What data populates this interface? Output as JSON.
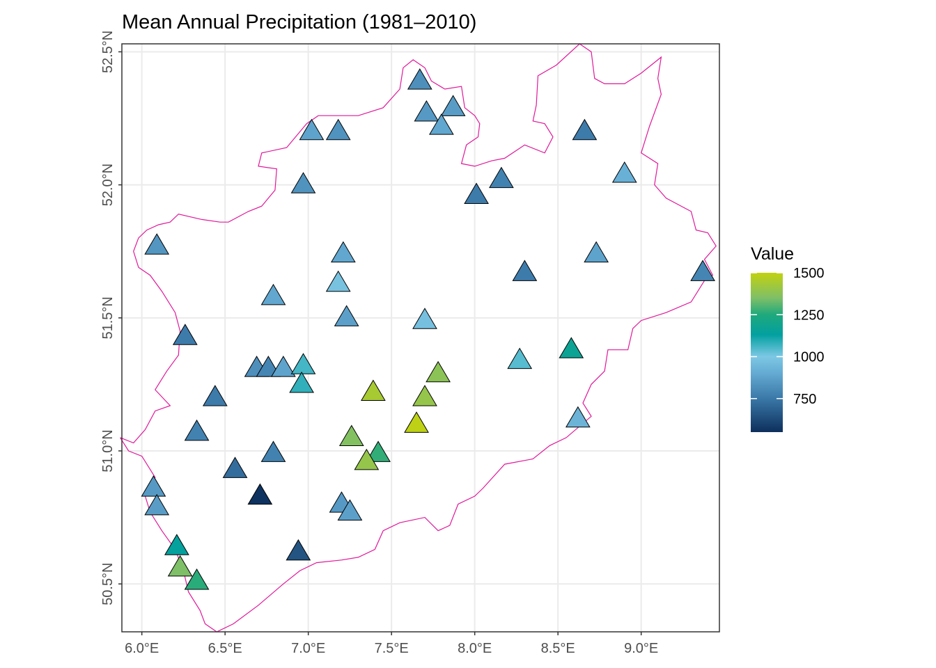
{
  "chart_data": {
    "type": "scatter",
    "title": "Mean Annual Precipitation (1981–2010)",
    "xlabel": "",
    "ylabel": "",
    "xlim": [
      5.88,
      9.47
    ],
    "ylim": [
      50.32,
      52.53
    ],
    "grid": true,
    "x_ticks": [
      6.0,
      6.5,
      7.0,
      7.5,
      8.0,
      8.5,
      9.0
    ],
    "x_tick_labels": [
      "6.0°E",
      "6.5°E",
      "7.0°E",
      "7.5°E",
      "8.0°E",
      "8.5°E",
      "9.0°E"
    ],
    "y_ticks": [
      50.5,
      51.0,
      51.5,
      52.0,
      52.5
    ],
    "y_tick_labels": [
      "50.5°N",
      "51.0°N",
      "51.5°N",
      "52.0°N",
      "52.5°N"
    ],
    "marker": "triangle",
    "boundary_color": "#e0189a",
    "legend": {
      "title": "Value",
      "placement": "right",
      "range": [
        550,
        1500
      ],
      "breaks": [
        750,
        1000,
        1250,
        1500
      ],
      "break_labels": [
        "750",
        "1000",
        "1250",
        "1500"
      ],
      "colors": [
        {
          "v": 550,
          "c": "#0d2f5c"
        },
        {
          "v": 750,
          "c": "#3a78a8"
        },
        {
          "v": 900,
          "c": "#64aad2"
        },
        {
          "v": 1000,
          "c": "#7dc8e4"
        },
        {
          "v": 1130,
          "c": "#02a0a0"
        },
        {
          "v": 1250,
          "c": "#1fa97c"
        },
        {
          "v": 1350,
          "c": "#7fbf68"
        },
        {
          "v": 1500,
          "c": "#c2d20f"
        }
      ]
    },
    "points": [
      {
        "lon": 7.67,
        "lat": 52.39,
        "value": 820
      },
      {
        "lon": 7.71,
        "lat": 52.27,
        "value": 850
      },
      {
        "lon": 7.87,
        "lat": 52.29,
        "value": 860
      },
      {
        "lon": 7.8,
        "lat": 52.22,
        "value": 890
      },
      {
        "lon": 7.02,
        "lat": 52.2,
        "value": 880
      },
      {
        "lon": 7.18,
        "lat": 52.2,
        "value": 830
      },
      {
        "lon": 8.66,
        "lat": 52.2,
        "value": 760
      },
      {
        "lon": 6.97,
        "lat": 52.0,
        "value": 830
      },
      {
        "lon": 8.9,
        "lat": 52.04,
        "value": 920
      },
      {
        "lon": 8.16,
        "lat": 52.02,
        "value": 780
      },
      {
        "lon": 8.01,
        "lat": 51.96,
        "value": 760
      },
      {
        "lon": 6.09,
        "lat": 51.77,
        "value": 840
      },
      {
        "lon": 7.21,
        "lat": 51.74,
        "value": 890
      },
      {
        "lon": 8.73,
        "lat": 51.74,
        "value": 880
      },
      {
        "lon": 8.3,
        "lat": 51.67,
        "value": 760
      },
      {
        "lon": 9.37,
        "lat": 51.67,
        "value": 790
      },
      {
        "lon": 7.18,
        "lat": 51.63,
        "value": 980
      },
      {
        "lon": 6.79,
        "lat": 51.58,
        "value": 890
      },
      {
        "lon": 7.23,
        "lat": 51.5,
        "value": 870
      },
      {
        "lon": 7.7,
        "lat": 51.49,
        "value": 970
      },
      {
        "lon": 6.26,
        "lat": 51.43,
        "value": 760
      },
      {
        "lon": 8.58,
        "lat": 51.38,
        "value": 1170
      },
      {
        "lon": 8.27,
        "lat": 51.34,
        "value": 1040
      },
      {
        "lon": 6.69,
        "lat": 51.31,
        "value": 820
      },
      {
        "lon": 6.76,
        "lat": 51.31,
        "value": 790
      },
      {
        "lon": 6.85,
        "lat": 51.31,
        "value": 880
      },
      {
        "lon": 6.97,
        "lat": 51.32,
        "value": 1060
      },
      {
        "lon": 6.96,
        "lat": 51.25,
        "value": 1080
      },
      {
        "lon": 7.78,
        "lat": 51.29,
        "value": 1380
      },
      {
        "lon": 7.39,
        "lat": 51.22,
        "value": 1440
      },
      {
        "lon": 7.7,
        "lat": 51.2,
        "value": 1400
      },
      {
        "lon": 6.44,
        "lat": 51.2,
        "value": 760
      },
      {
        "lon": 7.65,
        "lat": 51.1,
        "value": 1490
      },
      {
        "lon": 8.62,
        "lat": 51.12,
        "value": 930
      },
      {
        "lon": 6.33,
        "lat": 51.07,
        "value": 780
      },
      {
        "lon": 7.26,
        "lat": 51.05,
        "value": 1360
      },
      {
        "lon": 6.79,
        "lat": 50.99,
        "value": 780
      },
      {
        "lon": 7.42,
        "lat": 50.99,
        "value": 1270
      },
      {
        "lon": 7.35,
        "lat": 50.96,
        "value": 1400
      },
      {
        "lon": 6.56,
        "lat": 50.93,
        "value": 720
      },
      {
        "lon": 6.07,
        "lat": 50.86,
        "value": 850
      },
      {
        "lon": 6.71,
        "lat": 50.83,
        "value": 560
      },
      {
        "lon": 7.2,
        "lat": 50.8,
        "value": 850
      },
      {
        "lon": 7.25,
        "lat": 50.77,
        "value": 870
      },
      {
        "lon": 6.09,
        "lat": 50.79,
        "value": 860
      },
      {
        "lon": 6.21,
        "lat": 50.64,
        "value": 1140
      },
      {
        "lon": 6.94,
        "lat": 50.62,
        "value": 650
      },
      {
        "lon": 6.23,
        "lat": 50.56,
        "value": 1350
      },
      {
        "lon": 6.33,
        "lat": 50.51,
        "value": 1260
      }
    ]
  }
}
